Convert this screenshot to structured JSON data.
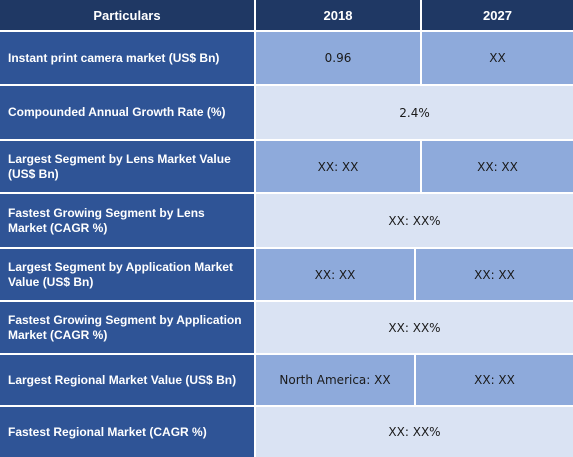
{
  "header": {
    "particulars": "Particulars",
    "year_1": "2018",
    "year_2": "2027"
  },
  "rows": [
    {
      "label": "Instant print camera market (US$ Bn)",
      "v2018": "0.96",
      "v2027": "XX"
    },
    {
      "label": "Compounded Annual Growth Rate (%)",
      "merged": "2.4%"
    },
    {
      "label": "Largest Segment by Lens Market Value (US$ Bn)",
      "v2018": "XX: XX",
      "v2027": "XX: XX"
    },
    {
      "label": "Fastest Growing Segment by Lens Market (CAGR %)",
      "merged": "XX: XX%"
    },
    {
      "label": "Largest Segment by Application Market Value (US$ Bn)",
      "v2018": "XX: XX",
      "v2027": "XX: XX"
    },
    {
      "label": "Fastest Growing Segment by Application Market (CAGR %)",
      "merged": "XX: XX%"
    },
    {
      "label": "Largest Regional Market Value (US$ Bn)",
      "v2018": "North America: XX",
      "v2027": "XX: XX"
    },
    {
      "label": "Fastest Regional Market (CAGR %)",
      "merged": "XX: XX%"
    }
  ],
  "colors": {
    "header_bg": "#1f3864",
    "label_bg": "#2f5496",
    "value_blue": "#8eaadb",
    "value_pale": "#dae3f3",
    "grid": "#ffffff"
  }
}
